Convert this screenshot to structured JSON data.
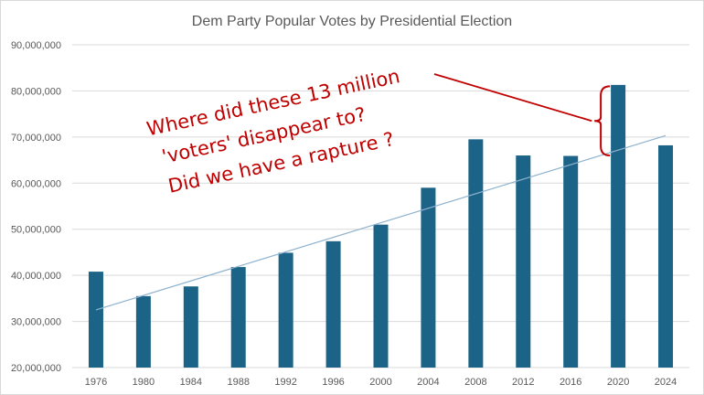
{
  "chart_data": {
    "type": "bar",
    "title": "Dem Party Popular Votes by Presidential Election",
    "xlabel": "",
    "ylabel": "",
    "categories": [
      "1976",
      "1980",
      "1984",
      "1988",
      "1992",
      "1996",
      "2000",
      "2004",
      "2008",
      "2012",
      "2016",
      "2020",
      "2024"
    ],
    "values": [
      40800000,
      35500000,
      37600000,
      41800000,
      44900000,
      47400000,
      51000000,
      59000000,
      69500000,
      66000000,
      65900000,
      81300000,
      68200000
    ],
    "ylim": [
      20000000,
      90000000
    ],
    "yticks": [
      20000000,
      30000000,
      40000000,
      50000000,
      60000000,
      70000000,
      80000000,
      90000000
    ],
    "ytick_labels": [
      "20,000,000",
      "30,000,000",
      "40,000,000",
      "50,000,000",
      "60,000,000",
      "70,000,000",
      "80,000,000",
      "90,000,000"
    ],
    "grid": true,
    "trendline": {
      "type": "linear",
      "start": 32500000,
      "end": 70300000
    },
    "colors": {
      "bar": "#1b6487",
      "trend": "#8fb3cf",
      "grid": "#d9d9d9",
      "annotation": "#c00000"
    },
    "annotation": {
      "lines": [
        "Where did these 13 million",
        "'voters' disappear to?",
        "Did we have a rapture ?"
      ],
      "target_category": "2020",
      "bracket_range": [
        66000000,
        81000000
      ]
    }
  }
}
